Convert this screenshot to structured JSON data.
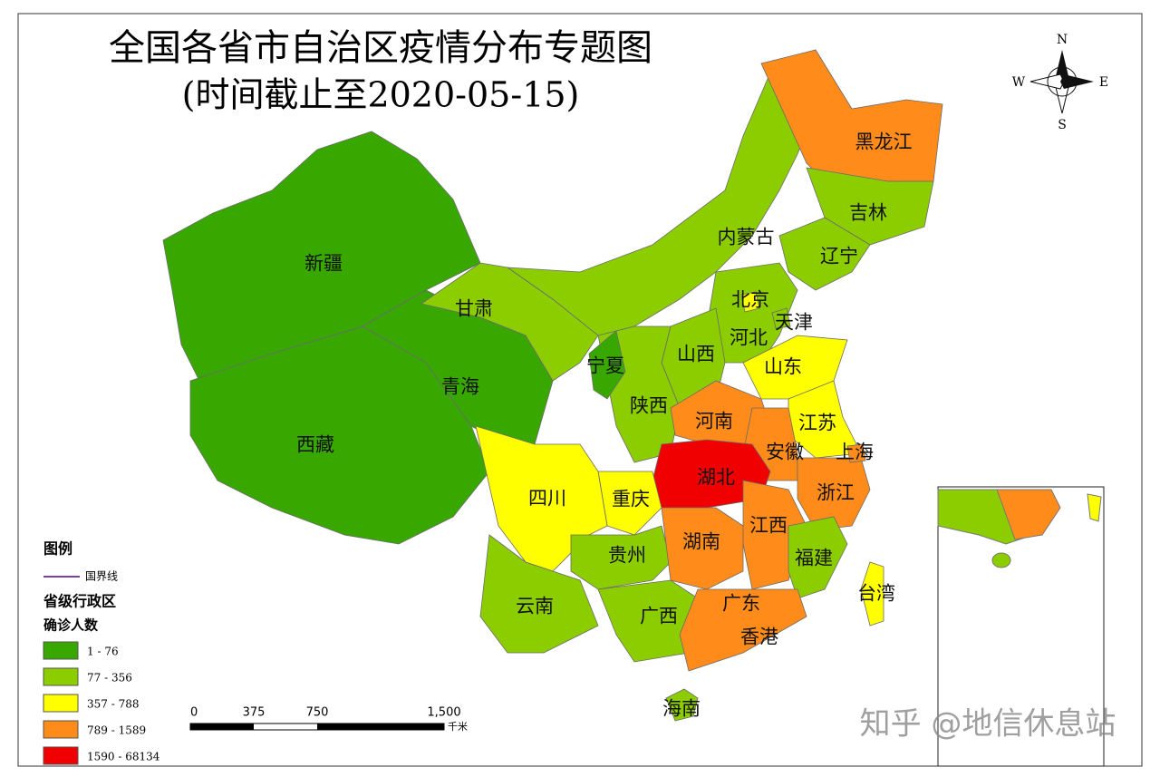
{
  "title": "全国各省市自治区疫情分布专题图",
  "subtitle": "(时间截止至2020-05-15)",
  "compass": {
    "north": "N",
    "south": "S",
    "east": "E",
    "west": "W"
  },
  "provinces": [
    {
      "name": "新疆",
      "color": "#38a800"
    },
    {
      "name": "西藏",
      "color": "#38a800"
    },
    {
      "name": "青海",
      "color": "#38a800"
    },
    {
      "name": "甘肃",
      "color": "#8ccd00"
    },
    {
      "name": "内蒙古",
      "color": "#8ccd00"
    },
    {
      "name": "黑龙江",
      "color": "#ff8c1a"
    },
    {
      "name": "吉林",
      "color": "#8ccd00"
    },
    {
      "name": "辽宁",
      "color": "#8ccd00"
    },
    {
      "name": "河北",
      "color": "#8ccd00"
    },
    {
      "name": "山西",
      "color": "#8ccd00"
    },
    {
      "name": "山东",
      "color": "#ffff00"
    },
    {
      "name": "陕西",
      "color": "#8ccd00"
    },
    {
      "name": "宁夏",
      "color": "#38a800"
    },
    {
      "name": "河南",
      "color": "#ff8c1a"
    },
    {
      "name": "江苏",
      "color": "#ffff00"
    },
    {
      "name": "安徽",
      "color": "#ff8c1a"
    },
    {
      "name": "湖北",
      "color": "#f00000"
    },
    {
      "name": "浙江",
      "color": "#ff8c1a"
    },
    {
      "name": "重庆",
      "color": "#ffff00"
    },
    {
      "name": "四川",
      "color": "#ffff00"
    },
    {
      "name": "贵州",
      "color": "#8ccd00"
    },
    {
      "name": "湖南",
      "color": "#ff8c1a"
    },
    {
      "name": "江西",
      "color": "#ff8c1a"
    },
    {
      "name": "福建",
      "color": "#8ccd00"
    },
    {
      "name": "云南",
      "color": "#8ccd00"
    },
    {
      "name": "广西",
      "color": "#8ccd00"
    },
    {
      "name": "广东",
      "color": "#ff8c1a"
    },
    {
      "name": "海南",
      "color": "#8ccd00"
    },
    {
      "name": "台湾",
      "color": "#ffff00"
    },
    {
      "name": "北京",
      "color": "#ffff00"
    },
    {
      "name": "天津",
      "color": "#8ccd00"
    },
    {
      "name": "上海",
      "color": "#ff8c1a"
    },
    {
      "name": "香港",
      "color": "#ff8c1a"
    }
  ],
  "legend": {
    "title": "图例",
    "border_label": "国界线",
    "group": "省级行政区",
    "field": "确诊人数",
    "classes": [
      {
        "label": "1 - 76",
        "color": "#38a800"
      },
      {
        "label": "77 - 356",
        "color": "#8ccd00"
      },
      {
        "label": "357 - 788",
        "color": "#ffff00"
      },
      {
        "label": "789 - 1589",
        "color": "#ff8c1a"
      },
      {
        "label": "1590 - 68134",
        "color": "#f00000"
      }
    ]
  },
  "scale_bar": {
    "ticks": [
      "0",
      "375",
      "750",
      "1,500"
    ],
    "unit": "千米"
  },
  "watermark": "知乎 @地信休息站"
}
